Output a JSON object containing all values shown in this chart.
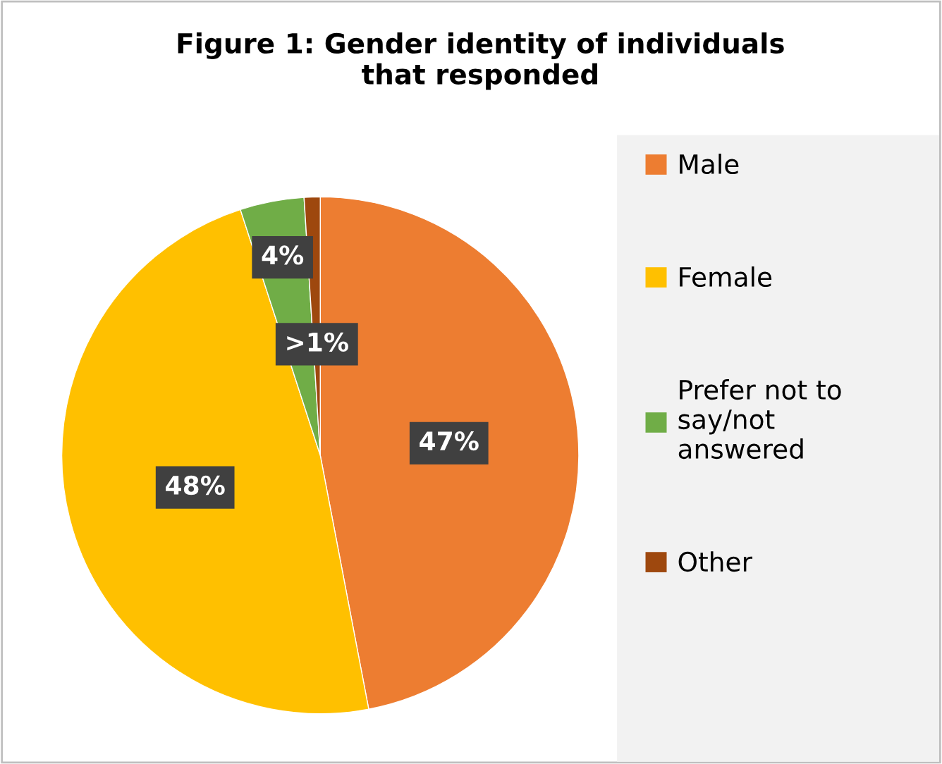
{
  "chart_data": {
    "type": "pie",
    "title": "Figure 1: Gender identity of individuals\nthat responded",
    "categories": [
      "Male",
      "Female",
      "Prefer not to\nsay/not\nanswered",
      "Other"
    ],
    "values": [
      47,
      48,
      4,
      1
    ],
    "colors": [
      "#ed7d31",
      "#ffc000",
      "#70ad47",
      "#9e480e"
    ],
    "value_labels": [
      "47%",
      "48%",
      "4%",
      ">1%"
    ],
    "legend": "right"
  }
}
